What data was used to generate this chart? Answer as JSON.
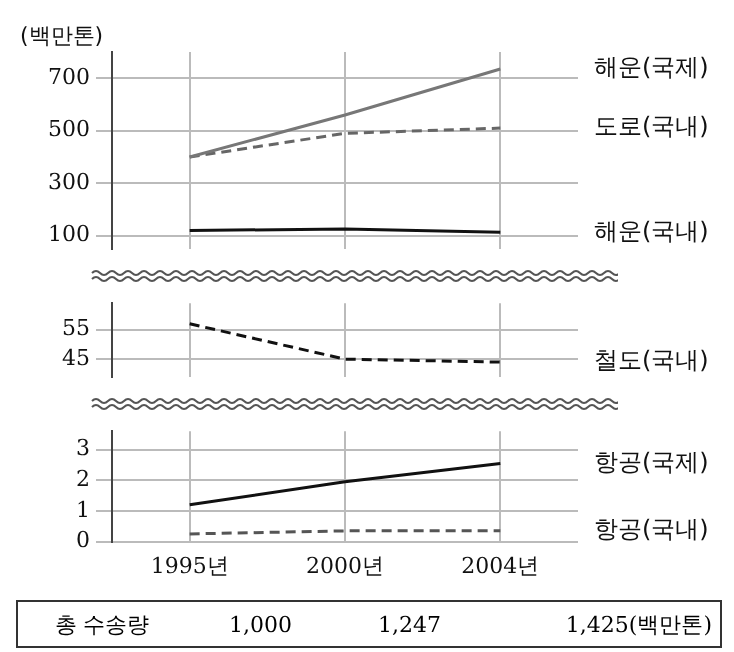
{
  "chart_data": [
    {
      "type": "line",
      "ylabel": "(백만톤)",
      "ylim": [
        50,
        800
      ],
      "yticks": [
        100,
        300,
        500,
        700
      ],
      "grid": true,
      "tick_labels": "y",
      "series": [
        {
          "name": "해운(국제)",
          "color": "#777777",
          "values": [
            400,
            560,
            735
          ]
        },
        {
          "name": "도로(국내)",
          "color": "#666666",
          "line_style": "dashed",
          "values": [
            400,
            490,
            510
          ]
        },
        {
          "name": "해운(국내)",
          "color": "#111111",
          "values": [
            120,
            125,
            113
          ]
        }
      ]
    },
    {
      "type": "line",
      "ylim": [
        39,
        64
      ],
      "yticks": [
        45,
        55
      ],
      "grid": true,
      "tick_labels": "y",
      "series": [
        {
          "name": "철도(국내)",
          "color": "#111111",
          "line_style": "dashed",
          "values": [
            57,
            45,
            44
          ]
        }
      ]
    },
    {
      "type": "line",
      "categories": [
        "1995년",
        "2000년",
        "2004년"
      ],
      "ylim": [
        0,
        3.6
      ],
      "yticks": [
        0,
        1,
        2,
        3
      ],
      "grid": true,
      "annotations": [
        "총 수송량",
        "1,000",
        "1,247",
        "1,425(백만톤)"
      ],
      "series": [
        {
          "name": "항공(국제)",
          "color": "#111111",
          "values": [
            1.2,
            1.95,
            2.55
          ]
        },
        {
          "name": "항공(국내)",
          "color": "#555555",
          "line_style": "dashed",
          "values": [
            0.25,
            0.35,
            0.35
          ]
        }
      ]
    }
  ]
}
